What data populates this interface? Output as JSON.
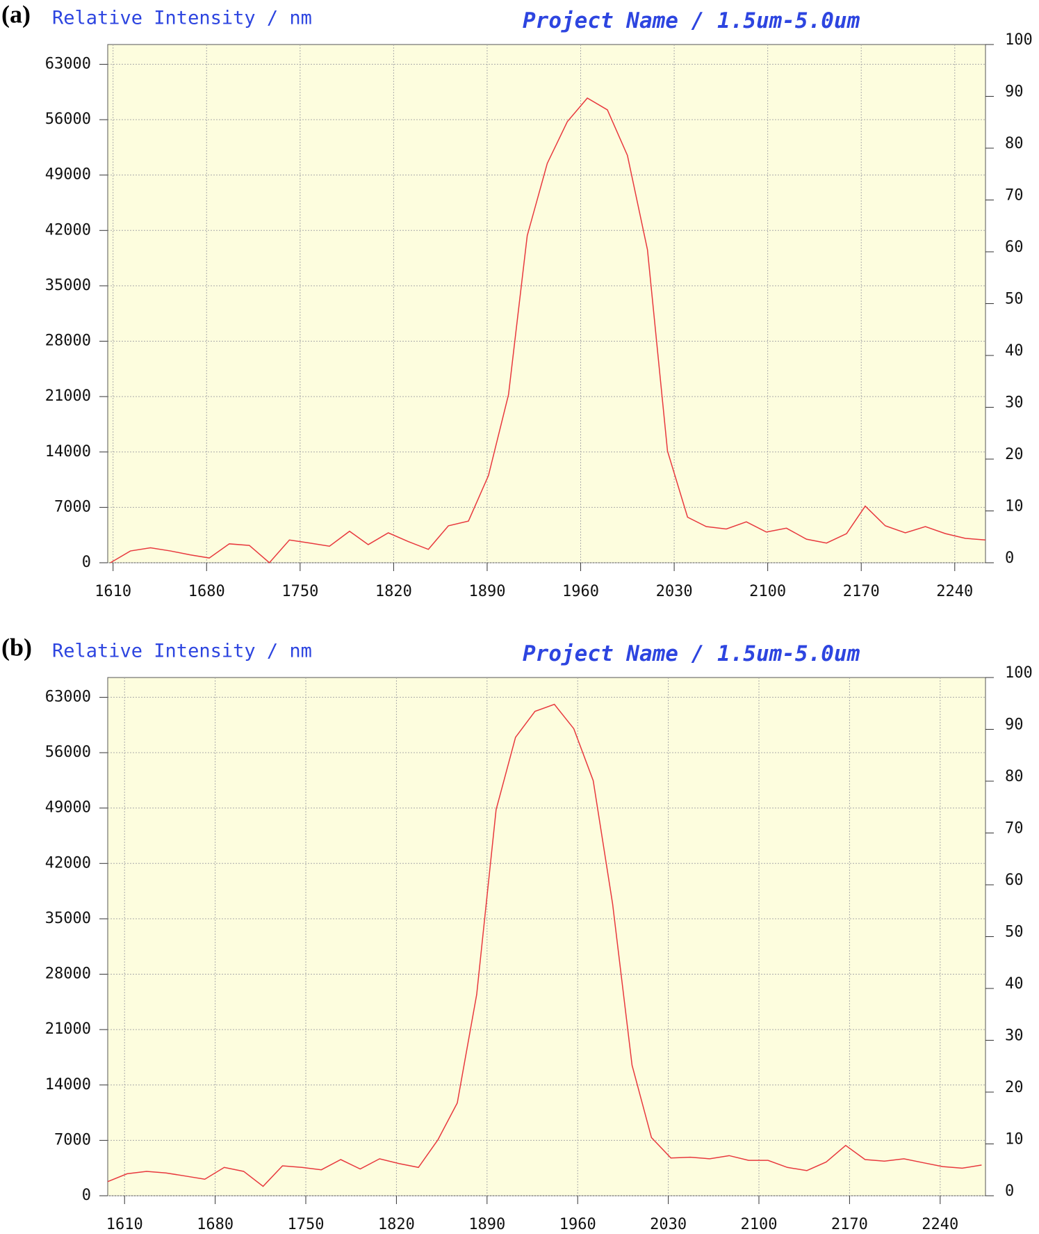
{
  "chart_data": [
    {
      "type": "line",
      "panel_label": "(a)",
      "y_label": "Relative Intensity / nm",
      "title": "Project Name / 1.5um-5.0um",
      "x": [
        1608,
        1623,
        1638,
        1653,
        1668,
        1682,
        1697,
        1712,
        1727,
        1742,
        1757,
        1772,
        1787,
        1801,
        1816,
        1831,
        1846,
        1861,
        1876,
        1891,
        1906,
        1920,
        1935,
        1950,
        1965,
        1980,
        1995,
        2010,
        2025,
        2040,
        2054,
        2069,
        2084,
        2099,
        2114,
        2129,
        2144,
        2159,
        2173,
        2188,
        2203,
        2218,
        2233,
        2248,
        2263
      ],
      "series": [
        {
          "color": "#e8383d",
          "values": [
            0,
            1490,
            1890,
            1490,
            990,
            600,
            2390,
            2190,
            0,
            2880,
            2490,
            2090,
            3980,
            2290,
            3780,
            2680,
            1690,
            4670,
            5270,
            11030,
            21260,
            41340,
            50480,
            55750,
            58730,
            57240,
            51480,
            39550,
            14110,
            5760,
            4570,
            4270,
            5170,
            3880,
            4370,
            2980,
            2490,
            3680,
            7160,
            4670,
            3780,
            4570,
            3680,
            3080,
            2880
          ]
        }
      ],
      "xlim": [
        1606,
        2263
      ],
      "xticks": [
        1610,
        1680,
        1750,
        1820,
        1890,
        1960,
        2030,
        2100,
        2170,
        2240
      ],
      "ylim": [
        0,
        65500
      ],
      "yticks": [
        0,
        7000,
        14000,
        21000,
        28000,
        35000,
        42000,
        49000,
        56000,
        63000
      ],
      "y2lim": [
        0,
        100
      ],
      "y2ticks": [
        0,
        10,
        20,
        30,
        40,
        50,
        60,
        70,
        80,
        90,
        100
      ],
      "grid": true
    },
    {
      "type": "line",
      "panel_label": "(b)",
      "y_label": "Relative Intensity / nm",
      "title": "Project Name / 1.5um-5.0um",
      "x": [
        1597,
        1612,
        1627,
        1642,
        1657,
        1672,
        1687,
        1702,
        1717,
        1732,
        1747,
        1762,
        1777,
        1792,
        1807,
        1822,
        1837,
        1852,
        1867,
        1882,
        1897,
        1912,
        1927,
        1942,
        1957,
        1972,
        1987,
        2002,
        2017,
        2032,
        2047,
        2062,
        2077,
        2092,
        2107,
        2122,
        2137,
        2152,
        2167,
        2182,
        2197,
        2212,
        2227,
        2242,
        2257,
        2272
      ],
      "series": [
        {
          "color": "#e8383d",
          "values": [
            1790,
            2780,
            3080,
            2880,
            2490,
            2090,
            3580,
            3080,
            1190,
            3780,
            3580,
            3280,
            4570,
            3380,
            4670,
            4070,
            3580,
            7060,
            11730,
            25440,
            48800,
            57940,
            61220,
            62110,
            59030,
            52470,
            36870,
            16500,
            7350,
            4770,
            4870,
            4670,
            5070,
            4470,
            4470,
            3580,
            3180,
            4270,
            6360,
            4570,
            4370,
            4670,
            4170,
            3680,
            3480,
            3880
          ]
        }
      ],
      "xlim": [
        1597,
        2275
      ],
      "xticks": [
        1610,
        1680,
        1750,
        1820,
        1890,
        1960,
        2030,
        2100,
        2170,
        2240
      ],
      "ylim": [
        0,
        65500
      ],
      "yticks": [
        0,
        7000,
        14000,
        21000,
        28000,
        35000,
        42000,
        49000,
        56000,
        63000
      ],
      "y2lim": [
        0,
        100
      ],
      "y2ticks": [
        0,
        10,
        20,
        30,
        40,
        50,
        60,
        70,
        80,
        90,
        100
      ],
      "grid": true
    }
  ]
}
